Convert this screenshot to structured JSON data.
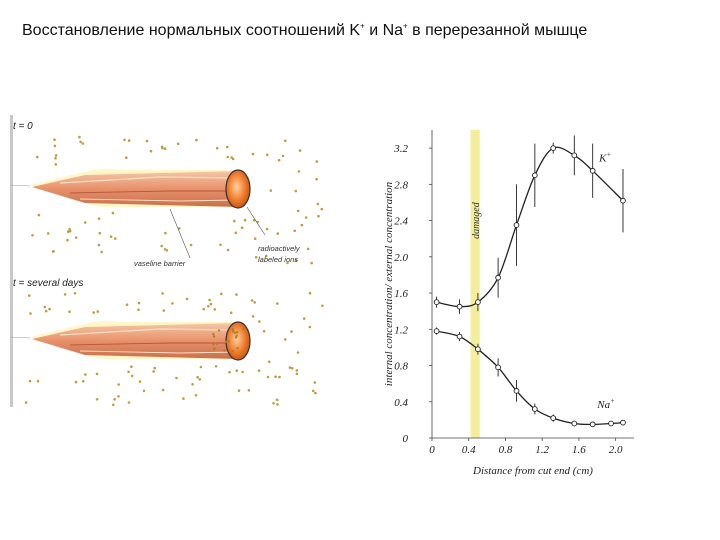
{
  "slide": {
    "title_prefix": "Восстановление нормальных соотношений K",
    "title_plus1": "+",
    "title_middle": " и Na",
    "title_plus2": "+",
    "title_suffix": " в перерезанной мышце"
  },
  "left_figure": {
    "panel1_label": "t = 0",
    "panel2_label": "t = several days",
    "callout_barrier": "vaseline barrier",
    "callout_ions_line1": "radioactively",
    "callout_ions_line2": "labeled ions",
    "colors": {
      "fiber": "#e8906a",
      "cut_end": "#f07a2a",
      "dots": "#b8a040"
    }
  },
  "chart_data": {
    "type": "line",
    "xlabel": "Distance from cut end (cm)",
    "ylabel": "internal concentration/ external concentration",
    "xlim": [
      0,
      2.2
    ],
    "ylim": [
      0,
      3.4
    ],
    "x_ticks": [
      "0",
      "0.4",
      "0.8",
      "1.2",
      "1.6",
      "2.0"
    ],
    "x_tick_values": [
      0,
      0.4,
      0.8,
      1.2,
      1.6,
      2.0
    ],
    "y_ticks": [
      "0",
      "0.4",
      "0.8",
      "1.2",
      "1.6",
      "2.0",
      "2.4",
      "2.8",
      "3.2"
    ],
    "y_tick_values": [
      0,
      0.4,
      0.8,
      1.2,
      1.6,
      2.0,
      2.4,
      2.8,
      3.2
    ],
    "damaged_region": {
      "label": "damaged",
      "x_from": 0.42,
      "x_to": 0.52,
      "color": "#f2ee9a"
    },
    "series": [
      {
        "name": "K+",
        "label_base": "K",
        "label_sup": "+",
        "x": [
          0.05,
          0.3,
          0.5,
          0.72,
          0.92,
          1.12,
          1.32,
          1.55,
          1.75,
          2.08
        ],
        "values": [
          1.5,
          1.45,
          1.5,
          1.77,
          2.35,
          2.9,
          3.2,
          3.12,
          2.95,
          2.62
        ],
        "err": [
          0.06,
          0.08,
          0.1,
          0.22,
          0.45,
          0.35,
          0.06,
          0.22,
          0.3,
          0.35
        ]
      },
      {
        "name": "Na+",
        "label_base": "Na",
        "label_sup": "+",
        "x": [
          0.05,
          0.3,
          0.5,
          0.72,
          0.92,
          1.12,
          1.32,
          1.55,
          1.75,
          1.95,
          2.08
        ],
        "values": [
          1.18,
          1.12,
          0.98,
          0.78,
          0.52,
          0.32,
          0.22,
          0.16,
          0.15,
          0.16,
          0.17
        ],
        "err": [
          0.04,
          0.05,
          0.06,
          0.1,
          0.12,
          0.06,
          0.04,
          0.03,
          0.02,
          0.02,
          0.02
        ]
      }
    ]
  }
}
